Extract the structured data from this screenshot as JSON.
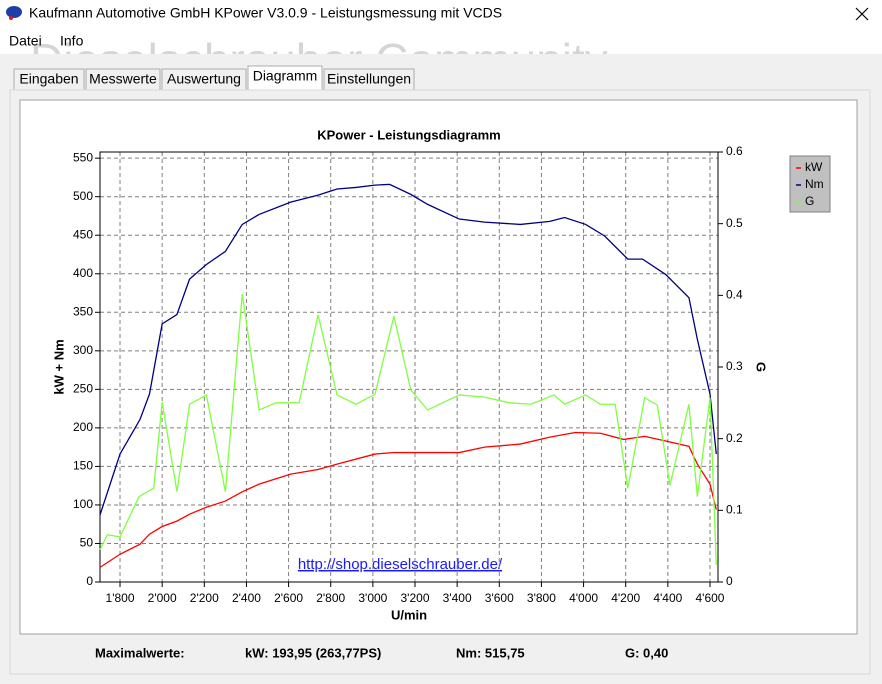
{
  "window": {
    "title": "Kaufmann Automotive GmbH  KPower V3.0.9 - Leistungsmessung mit VCDS",
    "menu": [
      "Datei",
      "Info"
    ],
    "watermark": "Dieselschrauber Community",
    "tabs": [
      "Eingaben",
      "Messwerte",
      "Auswertung",
      "Diagramm",
      "Einstellungen"
    ],
    "active_tab": "Diagramm"
  },
  "chart_data": {
    "type": "line",
    "title": "KPower - Leistungsdiagramm",
    "x_label": "U/min",
    "y_label": "kW + Nm",
    "y2_label": "G",
    "annotation": "http://shop.dieselschrauber.de/",
    "xlim": [
      1705,
      4638
    ],
    "ylim": [
      0,
      558
    ],
    "y2lim": [
      0,
      0.6
    ],
    "xticks": [
      {
        "value": 1800,
        "label": "1'800"
      },
      {
        "value": 2000,
        "label": "2'000"
      },
      {
        "value": 2200,
        "label": "2'200"
      },
      {
        "value": 2400,
        "label": "2'400"
      },
      {
        "value": 2600,
        "label": "2'600"
      },
      {
        "value": 2800,
        "label": "2'800"
      },
      {
        "value": 3000,
        "label": "3'000"
      },
      {
        "value": 3200,
        "label": "3'200"
      },
      {
        "value": 3400,
        "label": "3'400"
      },
      {
        "value": 3600,
        "label": "3'600"
      },
      {
        "value": 3800,
        "label": "3'800"
      },
      {
        "value": 4000,
        "label": "4'000"
      },
      {
        "value": 4200,
        "label": "4'200"
      },
      {
        "value": 4400,
        "label": "4'400"
      },
      {
        "value": 4600,
        "label": "4'600"
      }
    ],
    "yticks": [
      0,
      50,
      100,
      150,
      200,
      250,
      300,
      350,
      400,
      450,
      500,
      550
    ],
    "y2ticks": [
      0,
      0.1,
      0.2,
      0.3,
      0.4,
      0.5,
      0.6
    ],
    "grid": true,
    "legend": "right",
    "series": [
      {
        "name": "kW",
        "color": "#ff0000",
        "x": [
          1705,
          1800,
          1895,
          1940,
          2000,
          2070,
          2130,
          2210,
          2300,
          2380,
          2460,
          2610,
          2740,
          2830,
          3010,
          3100,
          3260,
          3410,
          3530,
          3700,
          3840,
          3960,
          4080,
          4190,
          4290,
          4390,
          4500,
          4540,
          4600,
          4630
        ],
        "values": [
          19,
          36,
          49,
          62,
          72,
          79,
          88,
          97,
          105,
          117,
          127,
          140,
          146,
          153,
          166,
          168,
          168,
          168,
          175,
          179,
          188,
          194,
          193,
          185,
          189,
          183,
          176,
          153,
          127,
          94
        ]
      },
      {
        "name": "Nm",
        "color": "#000080",
        "x": [
          1705,
          1800,
          1895,
          1940,
          2000,
          2070,
          2130,
          2210,
          2300,
          2380,
          2460,
          2610,
          2740,
          2830,
          2920,
          3010,
          3080,
          3180,
          3260,
          3410,
          3530,
          3700,
          3840,
          3910,
          4010,
          4100,
          4210,
          4280,
          4390,
          4500,
          4540,
          4600,
          4630
        ],
        "values": [
          87,
          166,
          211,
          244,
          335,
          347,
          393,
          412,
          429,
          464,
          477,
          493,
          502,
          510,
          512,
          515,
          516,
          503,
          490,
          471,
          467,
          464,
          468,
          473,
          464,
          449,
          419,
          419,
          399,
          369,
          315,
          244,
          166
        ]
      },
      {
        "name": "G",
        "color": "#80ff40",
        "axis": "y2",
        "x": [
          1705,
          1740,
          1800,
          1890,
          1960,
          2000,
          2070,
          2130,
          2210,
          2300,
          2380,
          2460,
          2540,
          2650,
          2740,
          2830,
          2920,
          3010,
          3100,
          3180,
          3260,
          3410,
          3530,
          3650,
          3750,
          3860,
          3910,
          4010,
          4080,
          4150,
          4210,
          4290,
          4350,
          4410,
          4500,
          4540,
          4600,
          4630
        ],
        "values": [
          0.045,
          0.066,
          0.063,
          0.119,
          0.131,
          0.251,
          0.126,
          0.248,
          0.261,
          0.126,
          0.402,
          0.24,
          0.25,
          0.25,
          0.373,
          0.261,
          0.248,
          0.262,
          0.371,
          0.268,
          0.24,
          0.261,
          0.258,
          0.25,
          0.248,
          0.261,
          0.248,
          0.261,
          0.248,
          0.248,
          0.131,
          0.257,
          0.247,
          0.135,
          0.248,
          0.119,
          0.257,
          0.024
        ]
      }
    ]
  },
  "footer": {
    "label": "Maximalwerte:",
    "kw": "kW: 193,95 (263,77PS)",
    "nm": "Nm: 515,75",
    "g": "G: 0,40"
  }
}
